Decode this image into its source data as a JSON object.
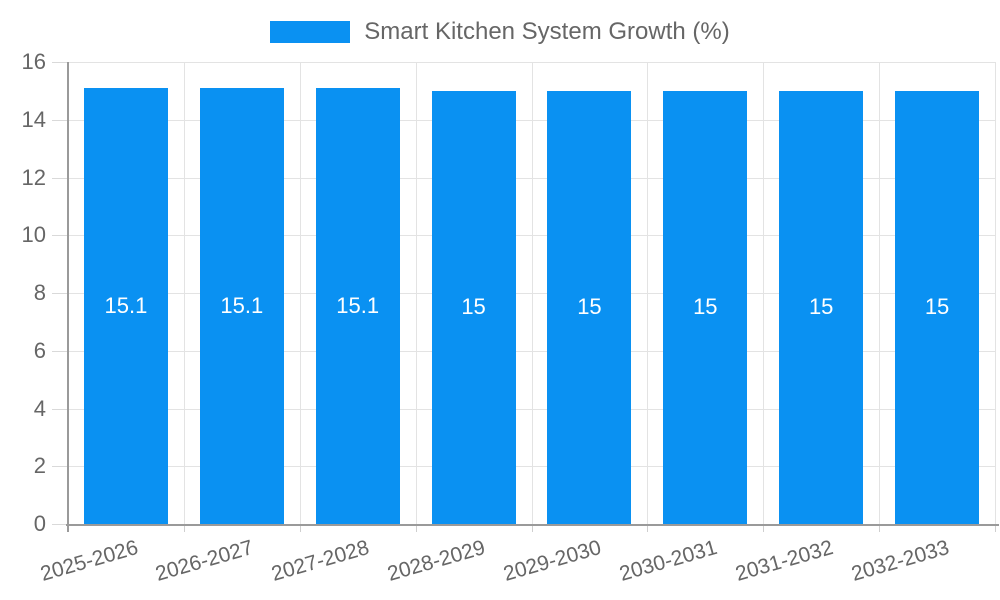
{
  "chart_data": {
    "type": "bar",
    "title": "Smart Kitchen System Growth (%)",
    "categories": [
      "2025-2026",
      "2026-2027",
      "2027-2028",
      "2028-2029",
      "2029-2030",
      "2030-2031",
      "2031-2032",
      "2032-2033"
    ],
    "values": [
      15.1,
      15.1,
      15.1,
      15,
      15,
      15,
      15,
      15
    ],
    "value_labels": [
      "15.1",
      "15.1",
      "15.1",
      "15",
      "15",
      "15",
      "15",
      "15"
    ],
    "xlabel": "",
    "ylabel": "",
    "ylim": [
      0,
      16
    ],
    "y_ticks": [
      0,
      2,
      4,
      6,
      8,
      10,
      12,
      14,
      16
    ],
    "grid": true,
    "legend_position": "top",
    "colors": {
      "bar": "#0a91f2",
      "value_label": "#ffffff",
      "tick_label": "#666666",
      "legend_text": "#666666",
      "gridline": "#e3e3e3",
      "axis_line": "#9a9a9a",
      "background": "#ffffff"
    }
  }
}
